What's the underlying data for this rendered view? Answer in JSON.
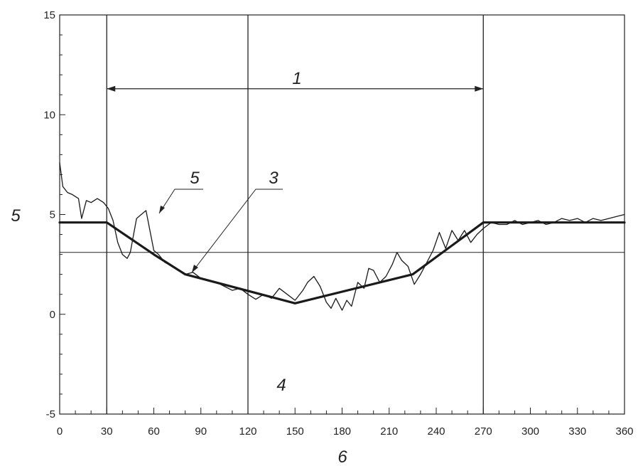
{
  "chart_data": {
    "type": "line",
    "xlabel": "6",
    "ylabel": "5",
    "xlim": [
      0,
      360
    ],
    "ylim": [
      -5,
      15
    ],
    "x_ticks": [
      0,
      30,
      60,
      90,
      120,
      150,
      180,
      210,
      240,
      270,
      300,
      330,
      360
    ],
    "y_ticks": [
      -5,
      0,
      5,
      10,
      15
    ],
    "grid": false,
    "vertical_lines": [
      30,
      120,
      270
    ],
    "horizontal_line": 3.1,
    "annotations": {
      "span_label": "1",
      "span_from": 30,
      "span_to": 270,
      "span_y": 11.3,
      "label_3": "3",
      "label_4": "4",
      "label_5": "5"
    },
    "series": [
      {
        "id": "thick",
        "x": [
          0,
          30,
          60,
          80,
          150,
          225,
          270,
          360
        ],
        "y": [
          4.6,
          4.6,
          3.0,
          2.0,
          0.55,
          2.0,
          4.6,
          4.6
        ]
      },
      {
        "id": "noisy",
        "x": [
          0,
          2,
          5,
          8,
          12,
          14,
          17,
          20,
          24,
          28,
          31,
          34,
          37,
          40,
          43,
          45,
          49,
          52,
          55,
          58,
          60,
          63,
          67,
          72,
          76,
          80,
          85,
          90,
          95,
          100,
          105,
          110,
          115,
          120,
          125,
          130,
          135,
          140,
          145,
          150,
          155,
          158,
          162,
          166,
          170,
          173,
          176,
          180,
          183,
          186,
          190,
          194,
          197,
          200,
          204,
          208,
          212,
          215,
          218,
          222,
          226,
          230,
          234,
          238,
          242,
          246,
          250,
          254,
          258,
          262,
          266,
          270,
          275,
          280,
          285,
          290,
          295,
          300,
          305,
          310,
          315,
          320,
          325,
          330,
          335,
          340,
          345,
          350,
          355,
          360
        ],
        "y": [
          7.6,
          6.4,
          6.1,
          6.0,
          5.8,
          4.8,
          5.7,
          5.6,
          5.8,
          5.6,
          5.3,
          4.7,
          3.6,
          3.0,
          2.8,
          3.1,
          4.8,
          5.0,
          5.2,
          4.0,
          3.2,
          3.0,
          2.6,
          2.4,
          2.2,
          2.0,
          2.1,
          1.8,
          1.7,
          1.6,
          1.4,
          1.2,
          1.3,
          1.0,
          0.75,
          1.0,
          0.8,
          1.3,
          1.0,
          0.7,
          1.2,
          1.6,
          1.9,
          1.4,
          0.6,
          0.3,
          0.8,
          0.2,
          0.7,
          0.4,
          1.6,
          1.3,
          2.3,
          2.2,
          1.6,
          1.9,
          2.5,
          3.1,
          2.7,
          2.4,
          1.5,
          2.0,
          2.6,
          3.2,
          4.1,
          3.3,
          4.2,
          3.7,
          4.2,
          3.6,
          4.0,
          4.3,
          4.6,
          4.5,
          4.5,
          4.7,
          4.5,
          4.6,
          4.7,
          4.5,
          4.6,
          4.8,
          4.7,
          4.8,
          4.6,
          4.8,
          4.7,
          4.8,
          4.9,
          5.0
        ]
      }
    ]
  }
}
